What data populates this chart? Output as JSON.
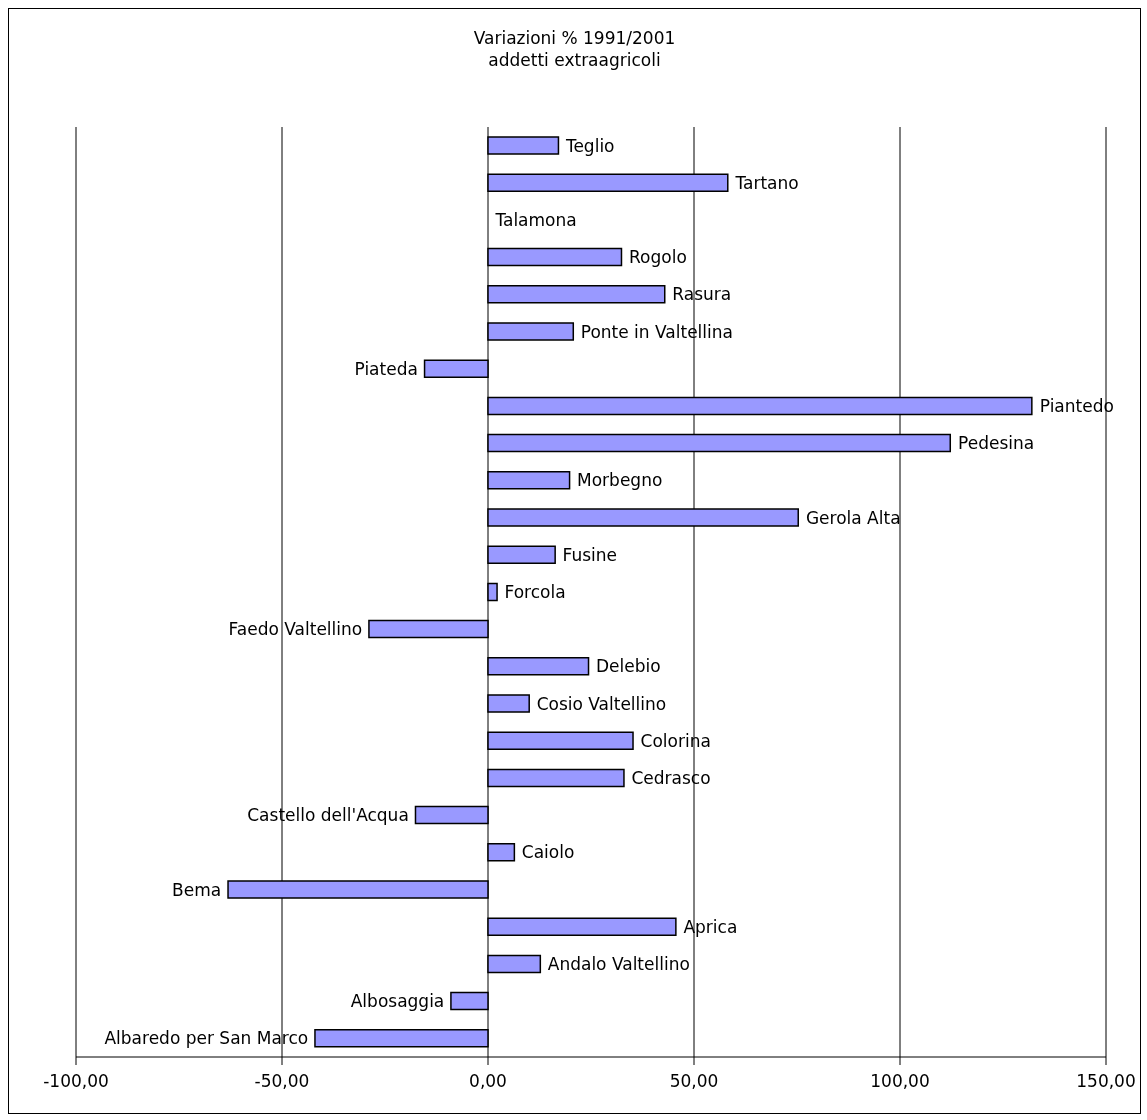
{
  "chart_data": {
    "type": "bar",
    "orientation": "horizontal",
    "title": "Variazioni % 1991/2001",
    "subtitle": "addetti extraagricoli",
    "categories": [
      "Teglio",
      "Tartano",
      "Talamona",
      "Rogolo",
      "Rasura",
      "Ponte in Valtellina",
      "Piateda",
      "Piantedo",
      "Pedesina",
      "Morbegno",
      "Gerola Alta",
      "Fusine",
      "Forcola",
      "Faedo Valtellino",
      "Delebio",
      "Cosio Valtellino",
      "Colorina",
      "Cedrasco",
      "Castello dell'Acqua",
      "Caiolo",
      "Bema",
      "Aprica",
      "Andalo Valtellino",
      "Albosaggia",
      "Albaredo per San Marco"
    ],
    "values": [
      17.1,
      58.2,
      null,
      32.4,
      42.9,
      20.7,
      -15.4,
      132.0,
      112.2,
      19.8,
      75.3,
      16.3,
      2.2,
      -28.9,
      24.4,
      10.0,
      35.2,
      33.0,
      -17.6,
      6.4,
      -63.1,
      45.6,
      12.7,
      -9.0,
      -42.0
    ],
    "color": "#9999ff",
    "xlim": [
      -100,
      150
    ],
    "xticks": [
      {
        "value": -100,
        "label": "-100,00"
      },
      {
        "value": -50,
        "label": "-50,00"
      },
      {
        "value": 0,
        "label": "0,00"
      },
      {
        "value": 50,
        "label": "50,00"
      },
      {
        "value": 100,
        "label": "100,00"
      },
      {
        "value": 150,
        "label": "150,00"
      }
    ],
    "grid": "x",
    "legend": false
  }
}
